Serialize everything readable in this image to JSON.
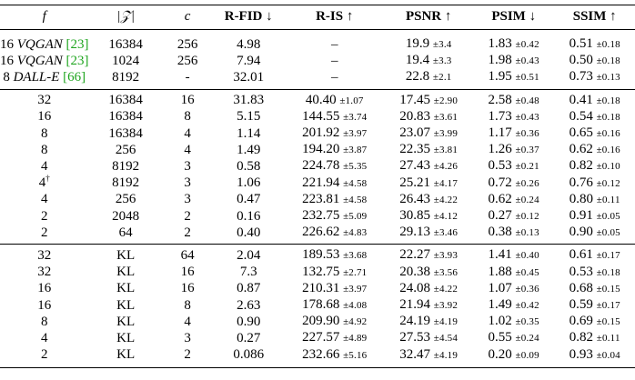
{
  "headers": {
    "f": "f",
    "z": "|𝒵|",
    "c": "c",
    "rfid": "R-FID ↓",
    "ris": "R-IS ↑",
    "psnr": "PSNR ↑",
    "psim": "PSIM ↓",
    "ssim": "SSIM ↑"
  },
  "group1": [
    {
      "f_num": "16",
      "f_model": "VQGAN",
      "f_cite": "[23]",
      "z": "16384",
      "c": "256",
      "rfid": "4.98",
      "ris": "–",
      "ris_sd": "",
      "psnr": "19.9",
      "psnr_sd": "±3.4",
      "psim": "1.83",
      "psim_sd": "±0.42",
      "ssim": "0.51",
      "ssim_sd": "±0.18"
    },
    {
      "f_num": "16",
      "f_model": "VQGAN",
      "f_cite": "[23]",
      "z": "1024",
      "c": "256",
      "rfid": "7.94",
      "ris": "–",
      "ris_sd": "",
      "psnr": "19.4",
      "psnr_sd": "±3.3",
      "psim": "1.98",
      "psim_sd": "±0.43",
      "ssim": "0.50",
      "ssim_sd": "±0.18"
    },
    {
      "f_num": "8",
      "f_model": "DALL-E",
      "f_cite": "[66]",
      "z": "8192",
      "c": "-",
      "rfid": "32.01",
      "ris": "–",
      "ris_sd": "",
      "psnr": "22.8",
      "psnr_sd": "±2.1",
      "psim": "1.95",
      "psim_sd": "±0.51",
      "ssim": "0.73",
      "ssim_sd": "±0.13"
    }
  ],
  "group2": [
    {
      "f": "32",
      "dag": "",
      "z": "16384",
      "c": "16",
      "rfid": "31.83",
      "ris": "40.40",
      "ris_sd": "±1.07",
      "psnr": "17.45",
      "psnr_sd": "±2.90",
      "psim": "2.58",
      "psim_sd": "±0.48",
      "ssim": "0.41",
      "ssim_sd": "±0.18"
    },
    {
      "f": "16",
      "dag": "",
      "z": "16384",
      "c": "8",
      "rfid": "5.15",
      "ris": "144.55",
      "ris_sd": "±3.74",
      "psnr": "20.83",
      "psnr_sd": "±3.61",
      "psim": "1.73",
      "psim_sd": "±0.43",
      "ssim": "0.54",
      "ssim_sd": "±0.18"
    },
    {
      "f": "8",
      "dag": "",
      "z": "16384",
      "c": "4",
      "rfid": "1.14",
      "ris": "201.92",
      "ris_sd": "±3.97",
      "psnr": "23.07",
      "psnr_sd": "±3.99",
      "psim": "1.17",
      "psim_sd": "±0.36",
      "ssim": "0.65",
      "ssim_sd": "±0.16"
    },
    {
      "f": "8",
      "dag": "",
      "z": "256",
      "c": "4",
      "rfid": "1.49",
      "ris": "194.20",
      "ris_sd": "±3.87",
      "psnr": "22.35",
      "psnr_sd": "±3.81",
      "psim": "1.26",
      "psim_sd": "±0.37",
      "ssim": "0.62",
      "ssim_sd": "±0.16"
    },
    {
      "f": "4",
      "dag": "",
      "z": "8192",
      "c": "3",
      "rfid": "0.58",
      "ris": "224.78",
      "ris_sd": "±5.35",
      "psnr": "27.43",
      "psnr_sd": "±4.26",
      "psim": "0.53",
      "psim_sd": "±0.21",
      "ssim": "0.82",
      "ssim_sd": "±0.10"
    },
    {
      "f": "4",
      "dag": "†",
      "z": "8192",
      "c": "3",
      "rfid": "1.06",
      "ris": "221.94",
      "ris_sd": "±4.58",
      "psnr": "25.21",
      "psnr_sd": "±4.17",
      "psim": "0.72",
      "psim_sd": "±0.26",
      "ssim": "0.76",
      "ssim_sd": "±0.12"
    },
    {
      "f": "4",
      "dag": "",
      "z": "256",
      "c": "3",
      "rfid": "0.47",
      "ris": "223.81",
      "ris_sd": "±4.58",
      "psnr": "26.43",
      "psnr_sd": "±4.22",
      "psim": "0.62",
      "psim_sd": "±0.24",
      "ssim": "0.80",
      "ssim_sd": "±0.11"
    },
    {
      "f": "2",
      "dag": "",
      "z": "2048",
      "c": "2",
      "rfid": "0.16",
      "ris": "232.75",
      "ris_sd": "±5.09",
      "psnr": "30.85",
      "psnr_sd": "±4.12",
      "psim": "0.27",
      "psim_sd": "±0.12",
      "ssim": "0.91",
      "ssim_sd": "±0.05"
    },
    {
      "f": "2",
      "dag": "",
      "z": "64",
      "c": "2",
      "rfid": "0.40",
      "ris": "226.62",
      "ris_sd": "±4.83",
      "psnr": "29.13",
      "psnr_sd": "±3.46",
      "psim": "0.38",
      "psim_sd": "±0.13",
      "ssim": "0.90",
      "ssim_sd": "±0.05"
    }
  ],
  "group3": [
    {
      "f": "32",
      "z": "KL",
      "c": "64",
      "rfid": "2.04",
      "ris": "189.53",
      "ris_sd": "±3.68",
      "psnr": "22.27",
      "psnr_sd": "±3.93",
      "psim": "1.41",
      "psim_sd": "±0.40",
      "ssim": "0.61",
      "ssim_sd": "±0.17"
    },
    {
      "f": "32",
      "z": "KL",
      "c": "16",
      "rfid": "7.3",
      "ris": "132.75",
      "ris_sd": "±2.71",
      "psnr": "20.38",
      "psnr_sd": "±3.56",
      "psim": "1.88",
      "psim_sd": "±0.45",
      "ssim": "0.53",
      "ssim_sd": "±0.18"
    },
    {
      "f": "16",
      "z": "KL",
      "c": "16",
      "rfid": "0.87",
      "ris": "210.31",
      "ris_sd": "±3.97",
      "psnr": "24.08",
      "psnr_sd": "±4.22",
      "psim": "1.07",
      "psim_sd": "±0.36",
      "ssim": "0.68",
      "ssim_sd": "±0.15"
    },
    {
      "f": "16",
      "z": "KL",
      "c": "8",
      "rfid": "2.63",
      "ris": "178.68",
      "ris_sd": "±4.08",
      "psnr": "21.94",
      "psnr_sd": "±3.92",
      "psim": "1.49",
      "psim_sd": "±0.42",
      "ssim": "0.59",
      "ssim_sd": "±0.17"
    },
    {
      "f": "8",
      "z": "KL",
      "c": "4",
      "rfid": "0.90",
      "ris": "209.90",
      "ris_sd": "±4.92",
      "psnr": "24.19",
      "psnr_sd": "±4.19",
      "psim": "1.02",
      "psim_sd": "±0.35",
      "ssim": "0.69",
      "ssim_sd": "±0.15"
    },
    {
      "f": "4",
      "z": "KL",
      "c": "3",
      "rfid": "0.27",
      "ris": "227.57",
      "ris_sd": "±4.89",
      "psnr": "27.53",
      "psnr_sd": "±4.54",
      "psim": "0.55",
      "psim_sd": "±0.24",
      "ssim": "0.82",
      "ssim_sd": "±0.11"
    },
    {
      "f": "2",
      "z": "KL",
      "c": "2",
      "rfid": "0.086",
      "ris": "232.66",
      "ris_sd": "±5.16",
      "psnr": "32.47",
      "psnr_sd": "±4.19",
      "psim": "0.20",
      "psim_sd": "±0.09",
      "ssim": "0.93",
      "ssim_sd": "±0.04"
    }
  ],
  "colors": {
    "cite": "#1fa51f",
    "text": "#000000",
    "rules": "#000000"
  }
}
